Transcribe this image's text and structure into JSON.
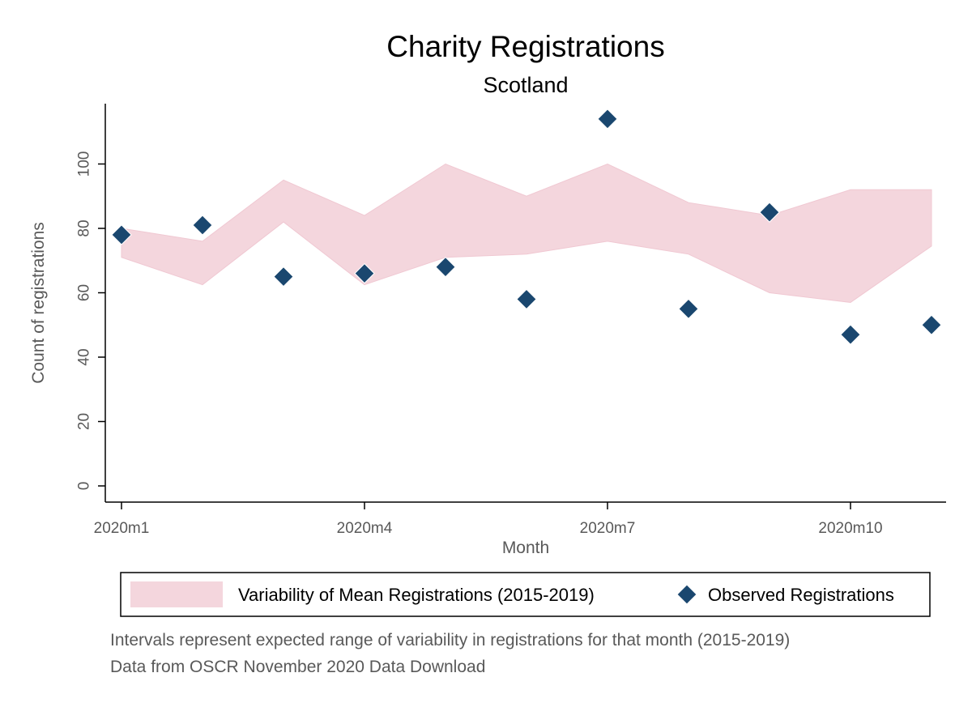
{
  "chart_data": {
    "type": "scatter",
    "title": "Charity Registrations",
    "subtitle": "Scotland",
    "xlabel": "Month",
    "ylabel": "Count of registrations",
    "x": [
      "2020m1",
      "2020m2",
      "2020m3",
      "2020m4",
      "2020m5",
      "2020m6",
      "2020m7",
      "2020m8",
      "2020m9",
      "2020m10",
      "2020m11"
    ],
    "x_ticks": [
      "2020m1",
      "2020m4",
      "2020m7",
      "2020m10"
    ],
    "y_ticks": [
      0,
      20,
      40,
      60,
      80,
      100
    ],
    "ylim": [
      0,
      120
    ],
    "grid": false,
    "band": {
      "name": "Variability of Mean Registrations (2015-2019)",
      "color": "#f4d6dd",
      "upper": [
        80,
        76,
        95,
        84,
        100,
        90,
        100,
        88,
        84,
        92,
        92
      ],
      "lower": [
        71,
        62.5,
        82,
        62.5,
        71,
        72,
        76,
        72,
        60,
        57,
        74.5
      ]
    },
    "series": [
      {
        "name": "Observed Registrations",
        "marker": "diamond",
        "color": "#1a476f",
        "values": [
          78,
          81,
          65,
          66,
          68,
          58,
          114,
          55,
          85,
          47,
          50
        ]
      }
    ],
    "legend": {
      "position": "bottom"
    },
    "notes": [
      "Intervals represent expected range of variability in registrations for that month (2015-2019)",
      "Data from OSCR November 2020 Data Download"
    ]
  }
}
